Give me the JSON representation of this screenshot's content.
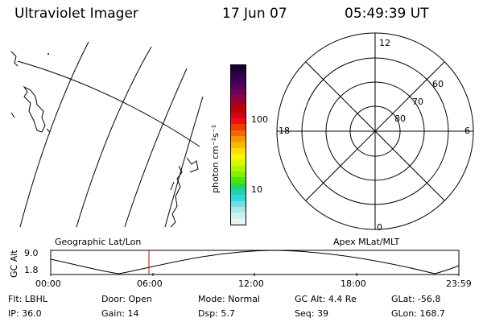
{
  "header": {
    "instrument": "Ultraviolet Imager",
    "date": "17 Jun 07",
    "time": "05:49:39 UT"
  },
  "colorbar": {
    "label": "photon cm⁻²s⁻¹",
    "ticks": [
      "100",
      "10"
    ],
    "colors": [
      "#150030",
      "#2a0048",
      "#3c0054",
      "#50005a",
      "#6e005a",
      "#8e0048",
      "#a80020",
      "#c00000",
      "#d80018",
      "#ec1010",
      "#f03c00",
      "#f46800",
      "#f89400",
      "#f8b800",
      "#fce000",
      "#f8f800",
      "#d8f800",
      "#b0f400",
      "#80f000",
      "#48e800",
      "#20d860",
      "#20d0b0",
      "#30d8d8",
      "#70e0e0",
      "#a8e8e8",
      "#d0f0f0",
      "#e8f4f4"
    ]
  },
  "polar": {
    "mlt_labels": {
      "top": "12",
      "bottom": "0",
      "left": "18",
      "right": "6"
    },
    "lat_labels": [
      "60",
      "70",
      "80"
    ]
  },
  "panels": {
    "left_title": "Geographic Lat/Lon",
    "right_title": "Apex MLat/MLT"
  },
  "alt_plot": {
    "axis_label": "GC Alt",
    "ymax": "9.0",
    "ymin": "1.8",
    "x_ticks": [
      "00:00",
      "06:00",
      "12:00",
      "18:00",
      "23:59"
    ],
    "marker_time": "05:49:39"
  },
  "info": {
    "row1": [
      {
        "k": "Flt:",
        "v": "LBHL"
      },
      {
        "k": "Door:",
        "v": "Open"
      },
      {
        "k": "Mode:",
        "v": "Normal"
      },
      {
        "k": "GC Alt:",
        "v": "4.4 Re"
      },
      {
        "k": "GLat:",
        "v": "-56.8"
      }
    ],
    "row2": [
      {
        "k": "IP:",
        "v": "36.0"
      },
      {
        "k": "Gain:",
        "v": "14"
      },
      {
        "k": "Dsp:",
        "v": "5.7"
      },
      {
        "k": "Seq:",
        "v": "39"
      },
      {
        "k": "GLon:",
        "v": "168.7"
      }
    ]
  }
}
